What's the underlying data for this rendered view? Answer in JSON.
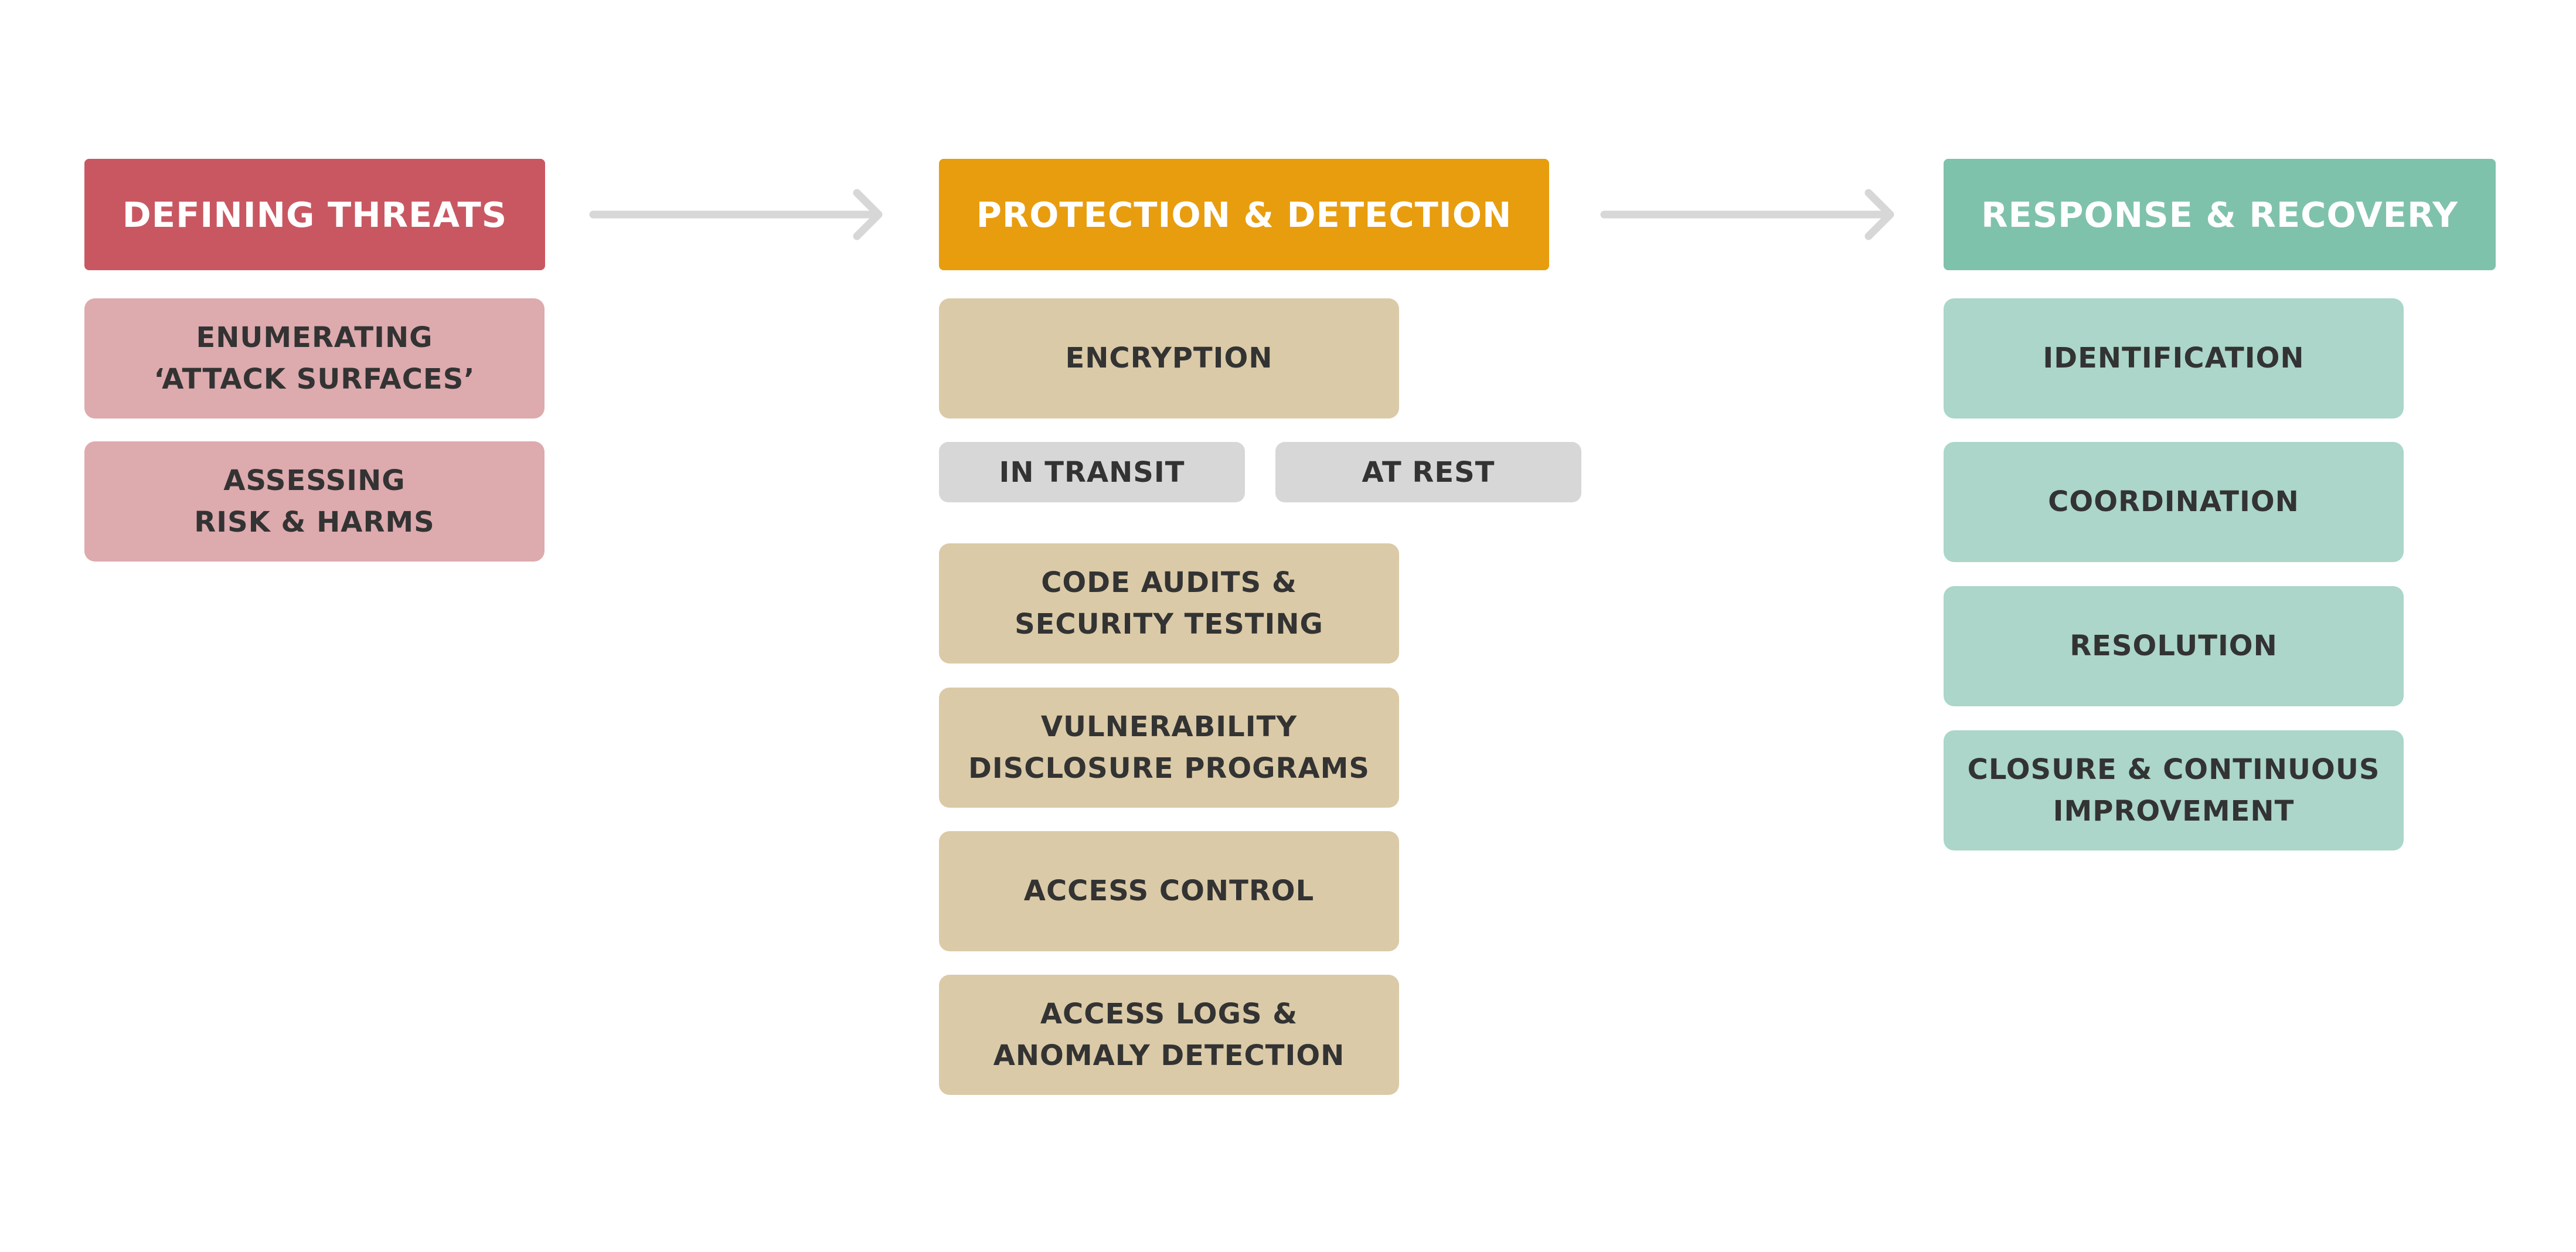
{
  "colors": {
    "defining_header": "#C95762",
    "defining_item": "#DDAAAE",
    "protection_header": "#E89D0E",
    "protection_item": "#DBCAA7",
    "protection_sub": "#D7D7D7",
    "response_header": "#7FC2AB",
    "response_item": "#ABD6C9",
    "arrow": "#D7D7D7"
  },
  "columns": {
    "defining": {
      "header": "DEFINING THREATS",
      "items": [
        "ENUMERATING\n‘ATTACK SURFACES’",
        "ASSESSING\nRISK & HARMS"
      ]
    },
    "protection": {
      "header": "PROTECTION & DETECTION",
      "items": [
        "ENCRYPTION",
        "CODE AUDITS &\nSECURITY TESTING",
        "VULNERABILITY\nDISCLOSURE PROGRAMS",
        "ACCESS CONTROL",
        "ACCESS LOGS &\nANOMALY DETECTION"
      ],
      "sub_items": [
        "IN TRANSIT",
        "AT REST"
      ]
    },
    "response": {
      "header": "RESPONSE & RECOVERY",
      "items": [
        "IDENTIFICATION",
        "COORDINATION",
        "RESOLUTION",
        "CLOSURE & CONTINUOUS\nIMPROVEMENT"
      ]
    }
  }
}
